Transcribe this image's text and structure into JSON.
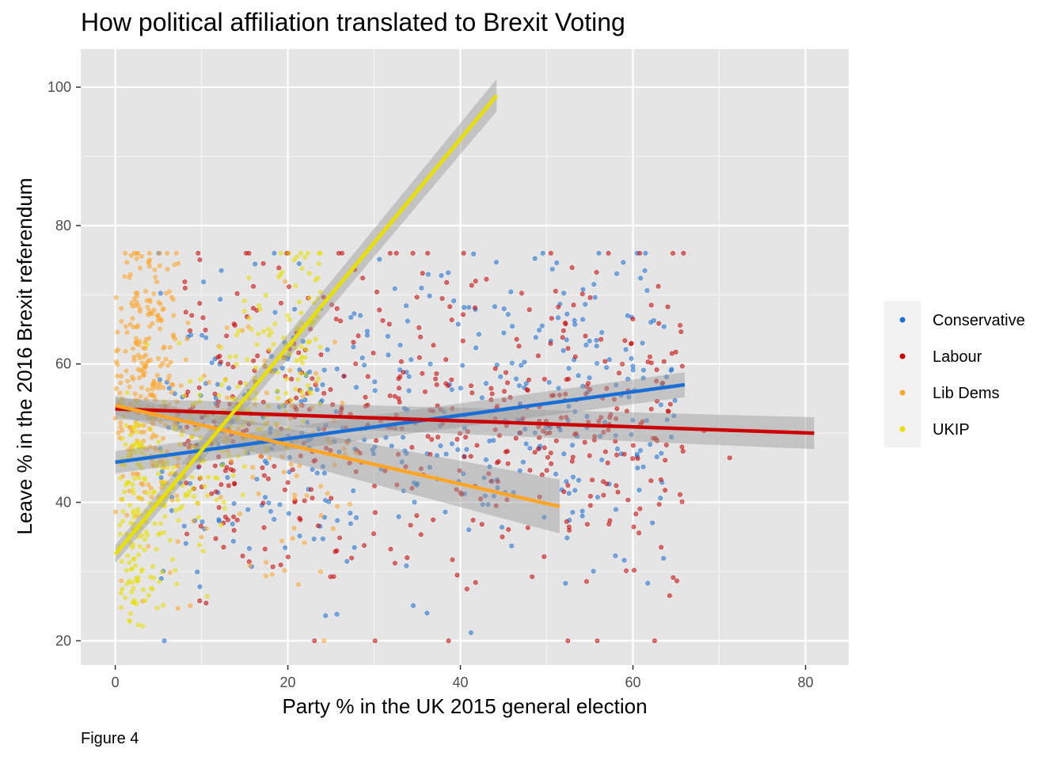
{
  "chart_data": {
    "type": "scatter",
    "title": "How political affiliation translated to Brexit Voting",
    "xlabel": "Party % in the UK 2015 general election",
    "ylabel": "Leave % in the 2016 Brexit referendum",
    "caption": "Figure 4",
    "xlim": [
      -4,
      85
    ],
    "ylim": [
      16.5,
      105.5
    ],
    "x_ticks": [
      0,
      20,
      40,
      60,
      80
    ],
    "y_ticks": [
      20,
      40,
      60,
      80,
      100
    ],
    "grid": true,
    "panel_background": "#e5e5e5",
    "legend_position": "right",
    "series": [
      {
        "name": "Conservative",
        "color": "#1a6fd6",
        "point_cluster": {
          "x_range": [
            0,
            66
          ],
          "y_range": [
            20,
            76
          ],
          "count": 420
        },
        "trend": {
          "x": [
            0,
            66
          ],
          "y": [
            45.8,
            57.0
          ],
          "ci": [
            [
              44.2,
              47.4
            ],
            [
              55.2,
              58.8
            ]
          ]
        }
      },
      {
        "name": "Labour",
        "color": "#cc0000",
        "point_cluster": {
          "x_range": [
            4,
            81
          ],
          "y_range": [
            20,
            76
          ],
          "count": 520
        },
        "trend": {
          "x": [
            0,
            81
          ],
          "y": [
            53.5,
            50.0
          ],
          "ci": [
            [
              52.0,
              55.0
            ],
            [
              47.7,
              52.3
            ]
          ]
        }
      },
      {
        "name": "Lib Dems",
        "color": "#ffa629",
        "point_cluster": {
          "x_range": [
            0,
            35
          ],
          "y_range": [
            20,
            76
          ],
          "count": 380
        },
        "trend": {
          "x": [
            0,
            51.5
          ],
          "y": [
            54.0,
            39.4
          ],
          "ci": [
            [
              52.6,
              55.4
            ],
            [
              35.5,
              43.3
            ]
          ]
        }
      },
      {
        "name": "UKIP",
        "color": "#e8e000",
        "point_cluster": {
          "x_range": [
            0,
            34
          ],
          "y_range": [
            20,
            76
          ],
          "count": 400
        },
        "trend": {
          "x": [
            0,
            44.2
          ],
          "y": [
            32.5,
            98.8
          ],
          "ci": [
            [
              31.2,
              33.8
            ],
            [
              96.5,
              101.2
            ]
          ]
        }
      }
    ]
  }
}
